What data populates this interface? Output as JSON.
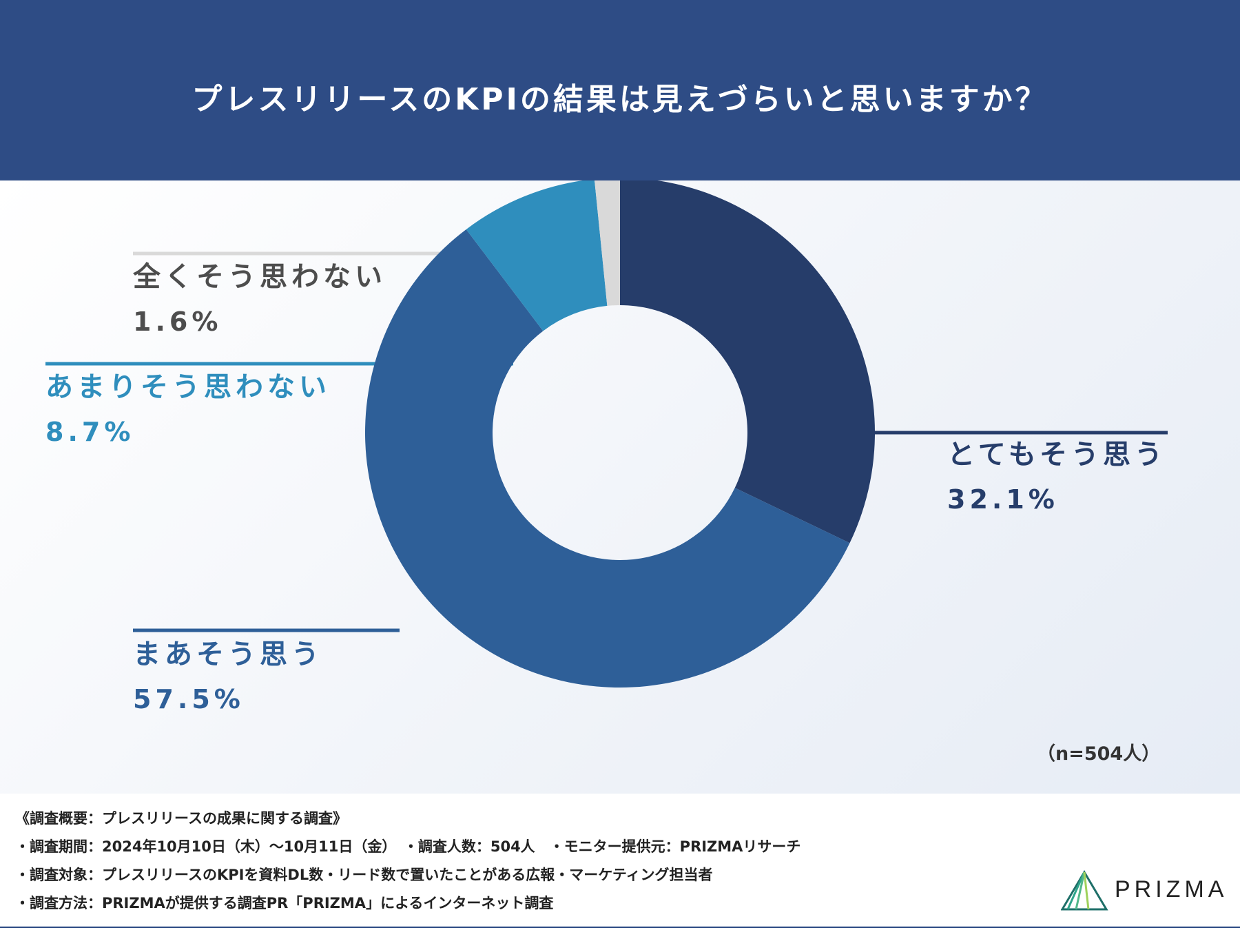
{
  "header": {
    "title": "プレスリリースのKPIの結果は見えづらいと思いますか？"
  },
  "chart_data": {
    "type": "pie",
    "title": "プレスリリースのKPIの結果は見えづらいと思いますか？",
    "categories": [
      "とてもそう思う",
      "まあそう思う",
      "あまりそう思わない",
      "全くそう思わない"
    ],
    "values": [
      32.1,
      57.5,
      8.7,
      1.6
    ],
    "value_labels": [
      "32.1%",
      "57.5%",
      "8.7%",
      "1.6%"
    ],
    "colors": [
      "#263d6a",
      "#2e5f98",
      "#2f8ebd",
      "#d9d9d9"
    ],
    "label_colors": [
      "#263d6a",
      "#2e5f98",
      "#2f8ebd",
      "#4d4d4d"
    ],
    "donut": true,
    "legend": "none"
  },
  "sample_size": "（n=504人）",
  "footer": {
    "lines": [
      "《調査概要：プレスリリースの成果に関する調査》",
      "・調査期間：2024年10月10日（木）〜10月11日（金）　・調査人数：504人　・モニター提供元：PRIZMAリサーチ",
      "・調査対象：プレスリリースのKPIを資料DL数・リード数で置いたことがある広報・マーケティング担当者",
      "・調査方法：PRIZMAが提供する調査PR「PRIZMA」によるインターネット調査"
    ]
  },
  "logo": {
    "text": "PRIZMA",
    "colors": [
      "#1e6f68",
      "#2ea58a",
      "#9fd15b"
    ]
  }
}
